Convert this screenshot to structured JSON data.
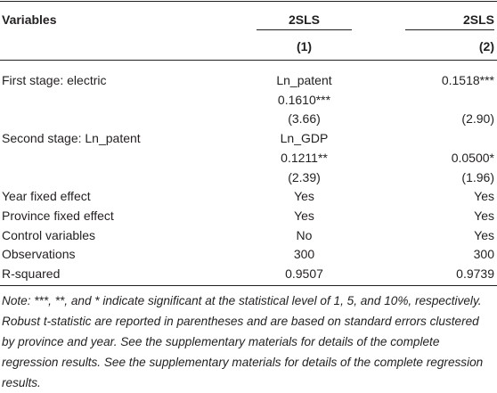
{
  "table": {
    "header": [
      "Variables",
      "2SLS",
      "2SLS"
    ],
    "subheader": [
      "(1)",
      "(2)"
    ],
    "rows": [
      [
        "First stage: electric",
        "Ln_patent",
        "0.1518***"
      ],
      [
        null,
        "0.1610***",
        null
      ],
      [
        null,
        "(3.66)",
        "(2.90)"
      ],
      [
        "Second stage: Ln_patent",
        "Ln_GDP",
        null
      ],
      [
        null,
        "0.1211**",
        "0.0500*"
      ],
      [
        null,
        "(2.39)",
        "(1.96)"
      ],
      [
        "Year fixed effect",
        "Yes",
        "Yes"
      ],
      [
        "Province fixed effect",
        "Yes",
        "Yes"
      ],
      [
        "Control variables",
        "No",
        "Yes"
      ],
      [
        "Observations",
        "300",
        "300"
      ],
      [
        "R-squared",
        "0.9507",
        "0.9739"
      ]
    ],
    "note": "Note: ***, **, and * indicate significant at the statistical level of 1, 5, and 10%, respectively. Robust t-statistic are reported in parentheses and are based on standard errors clustered by province and year. See the supplementary materials for details of the complete regression results. See the supplementary materials for details of the complete regression results."
  }
}
